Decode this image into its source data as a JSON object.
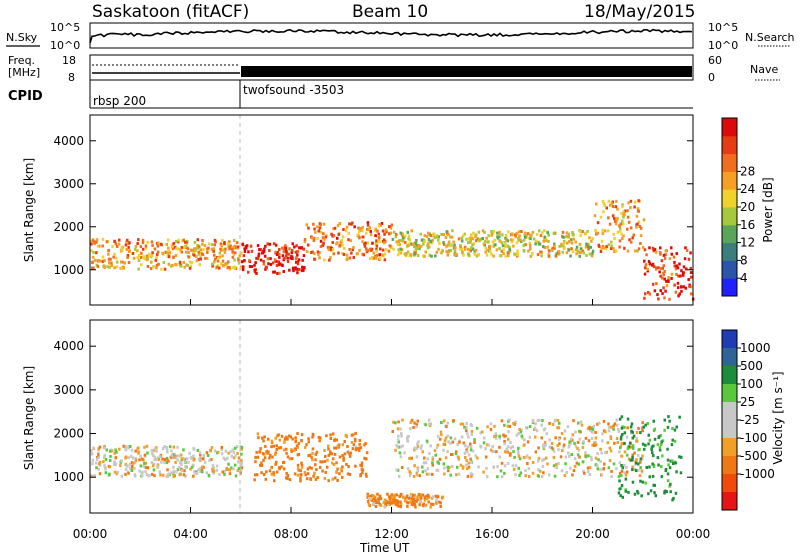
{
  "header": {
    "station": "Saskatoon (fitACF)",
    "beam": "Beam 10",
    "date": "18/May/2015"
  },
  "strips": {
    "nsky_label": "N.Sky",
    "nsearch_label": "N.Search",
    "noise_ticks_left": [
      "10^5",
      "10^0"
    ],
    "noise_ticks_right": [
      "10^5",
      "10^0"
    ],
    "freq_label_line1": "Freq.",
    "freq_label_line2": "[MHz]",
    "freq_ticks": [
      "18",
      "8"
    ],
    "nave_label": "Nave",
    "nave_ticks": [
      "60",
      "0"
    ],
    "cpid_label": "CPID",
    "cpid_modes": [
      "rbsp 200",
      "twofsound -3503"
    ]
  },
  "colors": {
    "power_scale": [
      "#2020ff",
      "#2a55a8",
      "#3c7d7d",
      "#5aa55a",
      "#a8c83c",
      "#f0d22d",
      "#f5a023",
      "#f06e1e",
      "#e63c14",
      "#dc0a0a"
    ],
    "velocity_scale": [
      "#1e3cb4",
      "#2e6496",
      "#1f8c3c",
      "#5ac83c",
      "#c8c8c8",
      "#c8c8c8",
      "#f0a028",
      "#f07814",
      "#f04b0a",
      "#e61414"
    ]
  },
  "chart_data": [
    {
      "type": "heatmap",
      "panel": "power",
      "xlabel": "",
      "ylabel": "Slant Range [km]",
      "xlim": [
        "00:00",
        "24:00"
      ],
      "ylim": [
        180,
        4600
      ],
      "y_ticks": [
        1000,
        2000,
        3000,
        4000
      ],
      "colorbar_label": "Power [dB]",
      "colorbar_ticks": [
        4,
        8,
        12,
        16,
        20,
        24,
        28
      ],
      "dominant_regions": [
        {
          "time_start": "00:00",
          "time_end": "06:00",
          "range_min_km": 1000,
          "range_max_km": 1700,
          "power_db": 22
        },
        {
          "time_start": "06:00",
          "time_end": "08:30",
          "range_min_km": 900,
          "range_max_km": 1600,
          "power_db": 30
        },
        {
          "time_start": "08:30",
          "time_end": "12:00",
          "range_min_km": 1200,
          "range_max_km": 2100,
          "power_db": 24
        },
        {
          "time_start": "12:00",
          "time_end": "20:00",
          "range_min_km": 1300,
          "range_max_km": 1900,
          "power_db": 18
        },
        {
          "time_start": "20:00",
          "time_end": "22:00",
          "range_min_km": 1400,
          "range_max_km": 2600,
          "power_db": 22
        },
        {
          "time_start": "22:00",
          "time_end": "24:00",
          "range_min_km": 300,
          "range_max_km": 1500,
          "power_db": 28
        }
      ]
    },
    {
      "type": "heatmap",
      "panel": "velocity",
      "xlabel": "Time UT",
      "ylabel": "Slant Range [km]",
      "xlim": [
        "00:00",
        "24:00"
      ],
      "ylim": [
        180,
        4600
      ],
      "x_ticks": [
        "00:00",
        "04:00",
        "08:00",
        "12:00",
        "16:00",
        "20:00",
        "00:00"
      ],
      "y_ticks": [
        1000,
        2000,
        3000,
        4000
      ],
      "colorbar_label": "Velocity [m s⁻¹]",
      "colorbar_ticks": [
        1000,
        500,
        100,
        25,
        -25,
        -100,
        -500,
        -1000
      ],
      "dominant_regions": [
        {
          "time_start": "00:00",
          "time_end": "06:00",
          "range_min_km": 1000,
          "range_max_km": 1700,
          "velocity_ms": 0
        },
        {
          "time_start": "06:30",
          "time_end": "11:00",
          "range_min_km": 900,
          "range_max_km": 2000,
          "velocity_ms": -200
        },
        {
          "time_start": "11:00",
          "time_end": "14:00",
          "range_min_km": 300,
          "range_max_km": 600,
          "velocity_ms": -150
        },
        {
          "time_start": "12:00",
          "time_end": "22:00",
          "range_min_km": 1000,
          "range_max_km": 2300,
          "velocity_ms": 0
        },
        {
          "time_start": "21:00",
          "time_end": "23:30",
          "range_min_km": 400,
          "range_max_km": 2400,
          "velocity_ms": 600
        }
      ]
    }
  ]
}
